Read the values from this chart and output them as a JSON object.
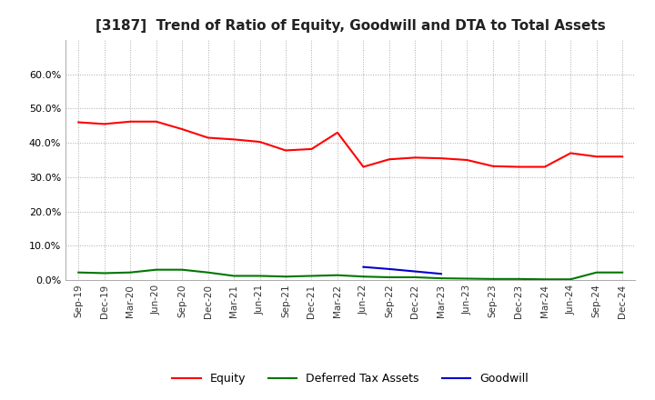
{
  "title": "[3187]  Trend of Ratio of Equity, Goodwill and DTA to Total Assets",
  "x_labels": [
    "Sep-19",
    "Dec-19",
    "Mar-20",
    "Jun-20",
    "Sep-20",
    "Dec-20",
    "Mar-21",
    "Jun-21",
    "Sep-21",
    "Dec-21",
    "Mar-22",
    "Jun-22",
    "Sep-22",
    "Dec-22",
    "Mar-23",
    "Jun-23",
    "Sep-23",
    "Dec-23",
    "Mar-24",
    "Jun-24",
    "Sep-24",
    "Dec-24"
  ],
  "equity": [
    0.46,
    0.455,
    0.462,
    0.462,
    0.44,
    0.415,
    0.41,
    0.403,
    0.378,
    0.382,
    0.43,
    0.33,
    0.352,
    0.357,
    0.355,
    0.35,
    0.332,
    0.33,
    0.33,
    0.37,
    0.36,
    0.36
  ],
  "goodwill": [
    null,
    null,
    null,
    null,
    null,
    null,
    null,
    null,
    null,
    null,
    null,
    0.038,
    0.032,
    0.025,
    0.018,
    null,
    null,
    null,
    null,
    null,
    null,
    null
  ],
  "dta": [
    0.022,
    0.02,
    0.022,
    0.03,
    0.03,
    0.022,
    0.012,
    0.012,
    0.01,
    0.012,
    0.014,
    0.01,
    0.008,
    0.008,
    0.005,
    0.004,
    0.003,
    0.003,
    0.002,
    0.002,
    0.022,
    0.022
  ],
  "equity_color": "#FF0000",
  "goodwill_color": "#0000CC",
  "dta_color": "#007700",
  "ylim_min": 0.0,
  "ylim_max": 0.7,
  "yticks": [
    0.0,
    0.1,
    0.2,
    0.3,
    0.4,
    0.5,
    0.6
  ],
  "background_color": "#FFFFFF",
  "grid_color": "#AAAAAA",
  "title_fontsize": 11
}
